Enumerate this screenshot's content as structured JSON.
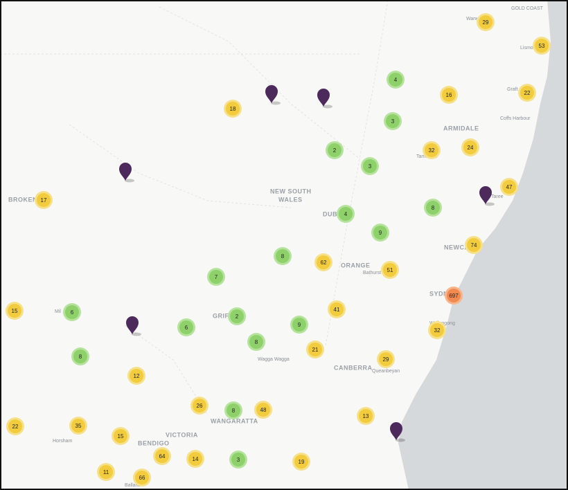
{
  "places": [
    "GOLD COAST",
    "Warw",
    "Lismo",
    "Graft",
    "Coffs Harbour",
    "ARMIDALE",
    "Tamworth",
    "Taree",
    "NEW SOUTH",
    "WALES",
    "BROKEN H",
    "DUBB",
    "NEWCAS",
    "ORANGE",
    "Bathurst",
    "SYDN",
    "Wollongong",
    "Mil",
    "GRIFF",
    "Wagga Wagga",
    "CANBERRA",
    "Queanbeyan",
    "WANGARATTA",
    "VICTORIA",
    "Horsham",
    "BENDIGO",
    "Ballara"
  ],
  "clusters": [
    29,
    53,
    4,
    16,
    22,
    18,
    3,
    2,
    32,
    24,
    3,
    47,
    17,
    4,
    8,
    9,
    74,
    8,
    62,
    51,
    7,
    697,
    15,
    6,
    41,
    2,
    6,
    9,
    32,
    8,
    21,
    29,
    8,
    12,
    26,
    8,
    48,
    13,
    22,
    35,
    15,
    64,
    14,
    3,
    19,
    11,
    66
  ]
}
